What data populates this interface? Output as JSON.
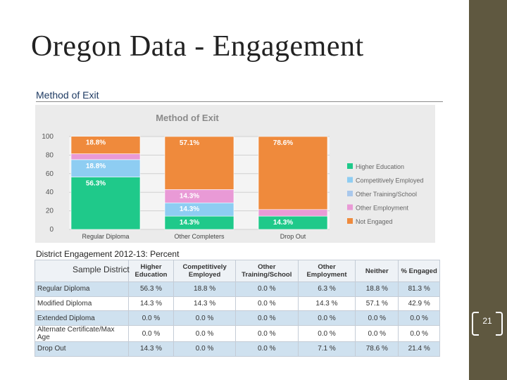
{
  "slide": {
    "title": "Oregon Data - Engagement",
    "page_number": "21"
  },
  "section": {
    "title": "Method of Exit",
    "sample_label": "Sample District"
  },
  "colors": {
    "higher_education": "#1fc98a",
    "competitively_employed": "#8ecdf2",
    "other_training_school": "#a9c8ec",
    "other_employment": "#e99ad6",
    "not_engaged": "#ef8a3c",
    "side_bar": "#5f5840"
  },
  "chart_data": {
    "type": "bar",
    "stacked": true,
    "title": "Method of Exit",
    "xlabel": "",
    "ylabel": "",
    "ylim": [
      0,
      100
    ],
    "yticks": [
      "0",
      "20",
      "40",
      "60",
      "80",
      "100"
    ],
    "categories": [
      "Regular Diploma",
      "Other Completers",
      "Drop Out"
    ],
    "series": [
      {
        "name": "Higher Education",
        "color": "#1fc98a",
        "values": [
          56.3,
          14.3,
          14.3
        ],
        "labels": [
          "56.3%",
          "14.3%",
          "14.3%"
        ]
      },
      {
        "name": "Competitively Employed",
        "color": "#8ecdf2",
        "values": [
          18.8,
          14.3,
          0
        ],
        "labels": [
          "18.8%",
          "14.3%",
          ""
        ]
      },
      {
        "name": "Other Training/School",
        "color": "#a9c8ec",
        "values": [
          0,
          0,
          0
        ],
        "labels": [
          "",
          "",
          ""
        ]
      },
      {
        "name": "Other Employment",
        "color": "#e99ad6",
        "values": [
          6.3,
          14.3,
          7.1
        ],
        "labels": [
          "",
          "14.3%",
          ""
        ]
      },
      {
        "name": "Not Engaged",
        "color": "#ef8a3c",
        "values": [
          18.8,
          57.1,
          78.6
        ],
        "labels": [
          "18.8%",
          "57.1%",
          "78.6%"
        ]
      }
    ],
    "legend_position": "right"
  },
  "table": {
    "title": "District Engagement 2012-13: Percent",
    "columns": [
      "Higher Education",
      "Competitively Employed",
      "Other Training/School",
      "Other Employment",
      "Neither",
      "% Engaged"
    ],
    "rows": [
      {
        "label": "Regular Diploma",
        "cells": [
          "56.3 %",
          "18.8 %",
          "0.0 %",
          "6.3 %",
          "18.8 %",
          "81.3 %"
        ]
      },
      {
        "label": "Modified Diploma",
        "cells": [
          "14.3 %",
          "14.3 %",
          "0.0 %",
          "14.3 %",
          "57.1 %",
          "42.9 %"
        ]
      },
      {
        "label": "Extended Diploma",
        "cells": [
          "0.0 %",
          "0.0 %",
          "0.0 %",
          "0.0 %",
          "0.0 %",
          "0.0 %"
        ]
      },
      {
        "label": "Alternate Certificate/Max Age",
        "cells": [
          "0.0 %",
          "0.0 %",
          "0.0 %",
          "0.0 %",
          "0.0 %",
          "0.0 %"
        ]
      },
      {
        "label": "Drop Out",
        "cells": [
          "14.3 %",
          "0.0 %",
          "0.0 %",
          "7.1 %",
          "78.6 %",
          "21.4 %"
        ]
      }
    ]
  }
}
